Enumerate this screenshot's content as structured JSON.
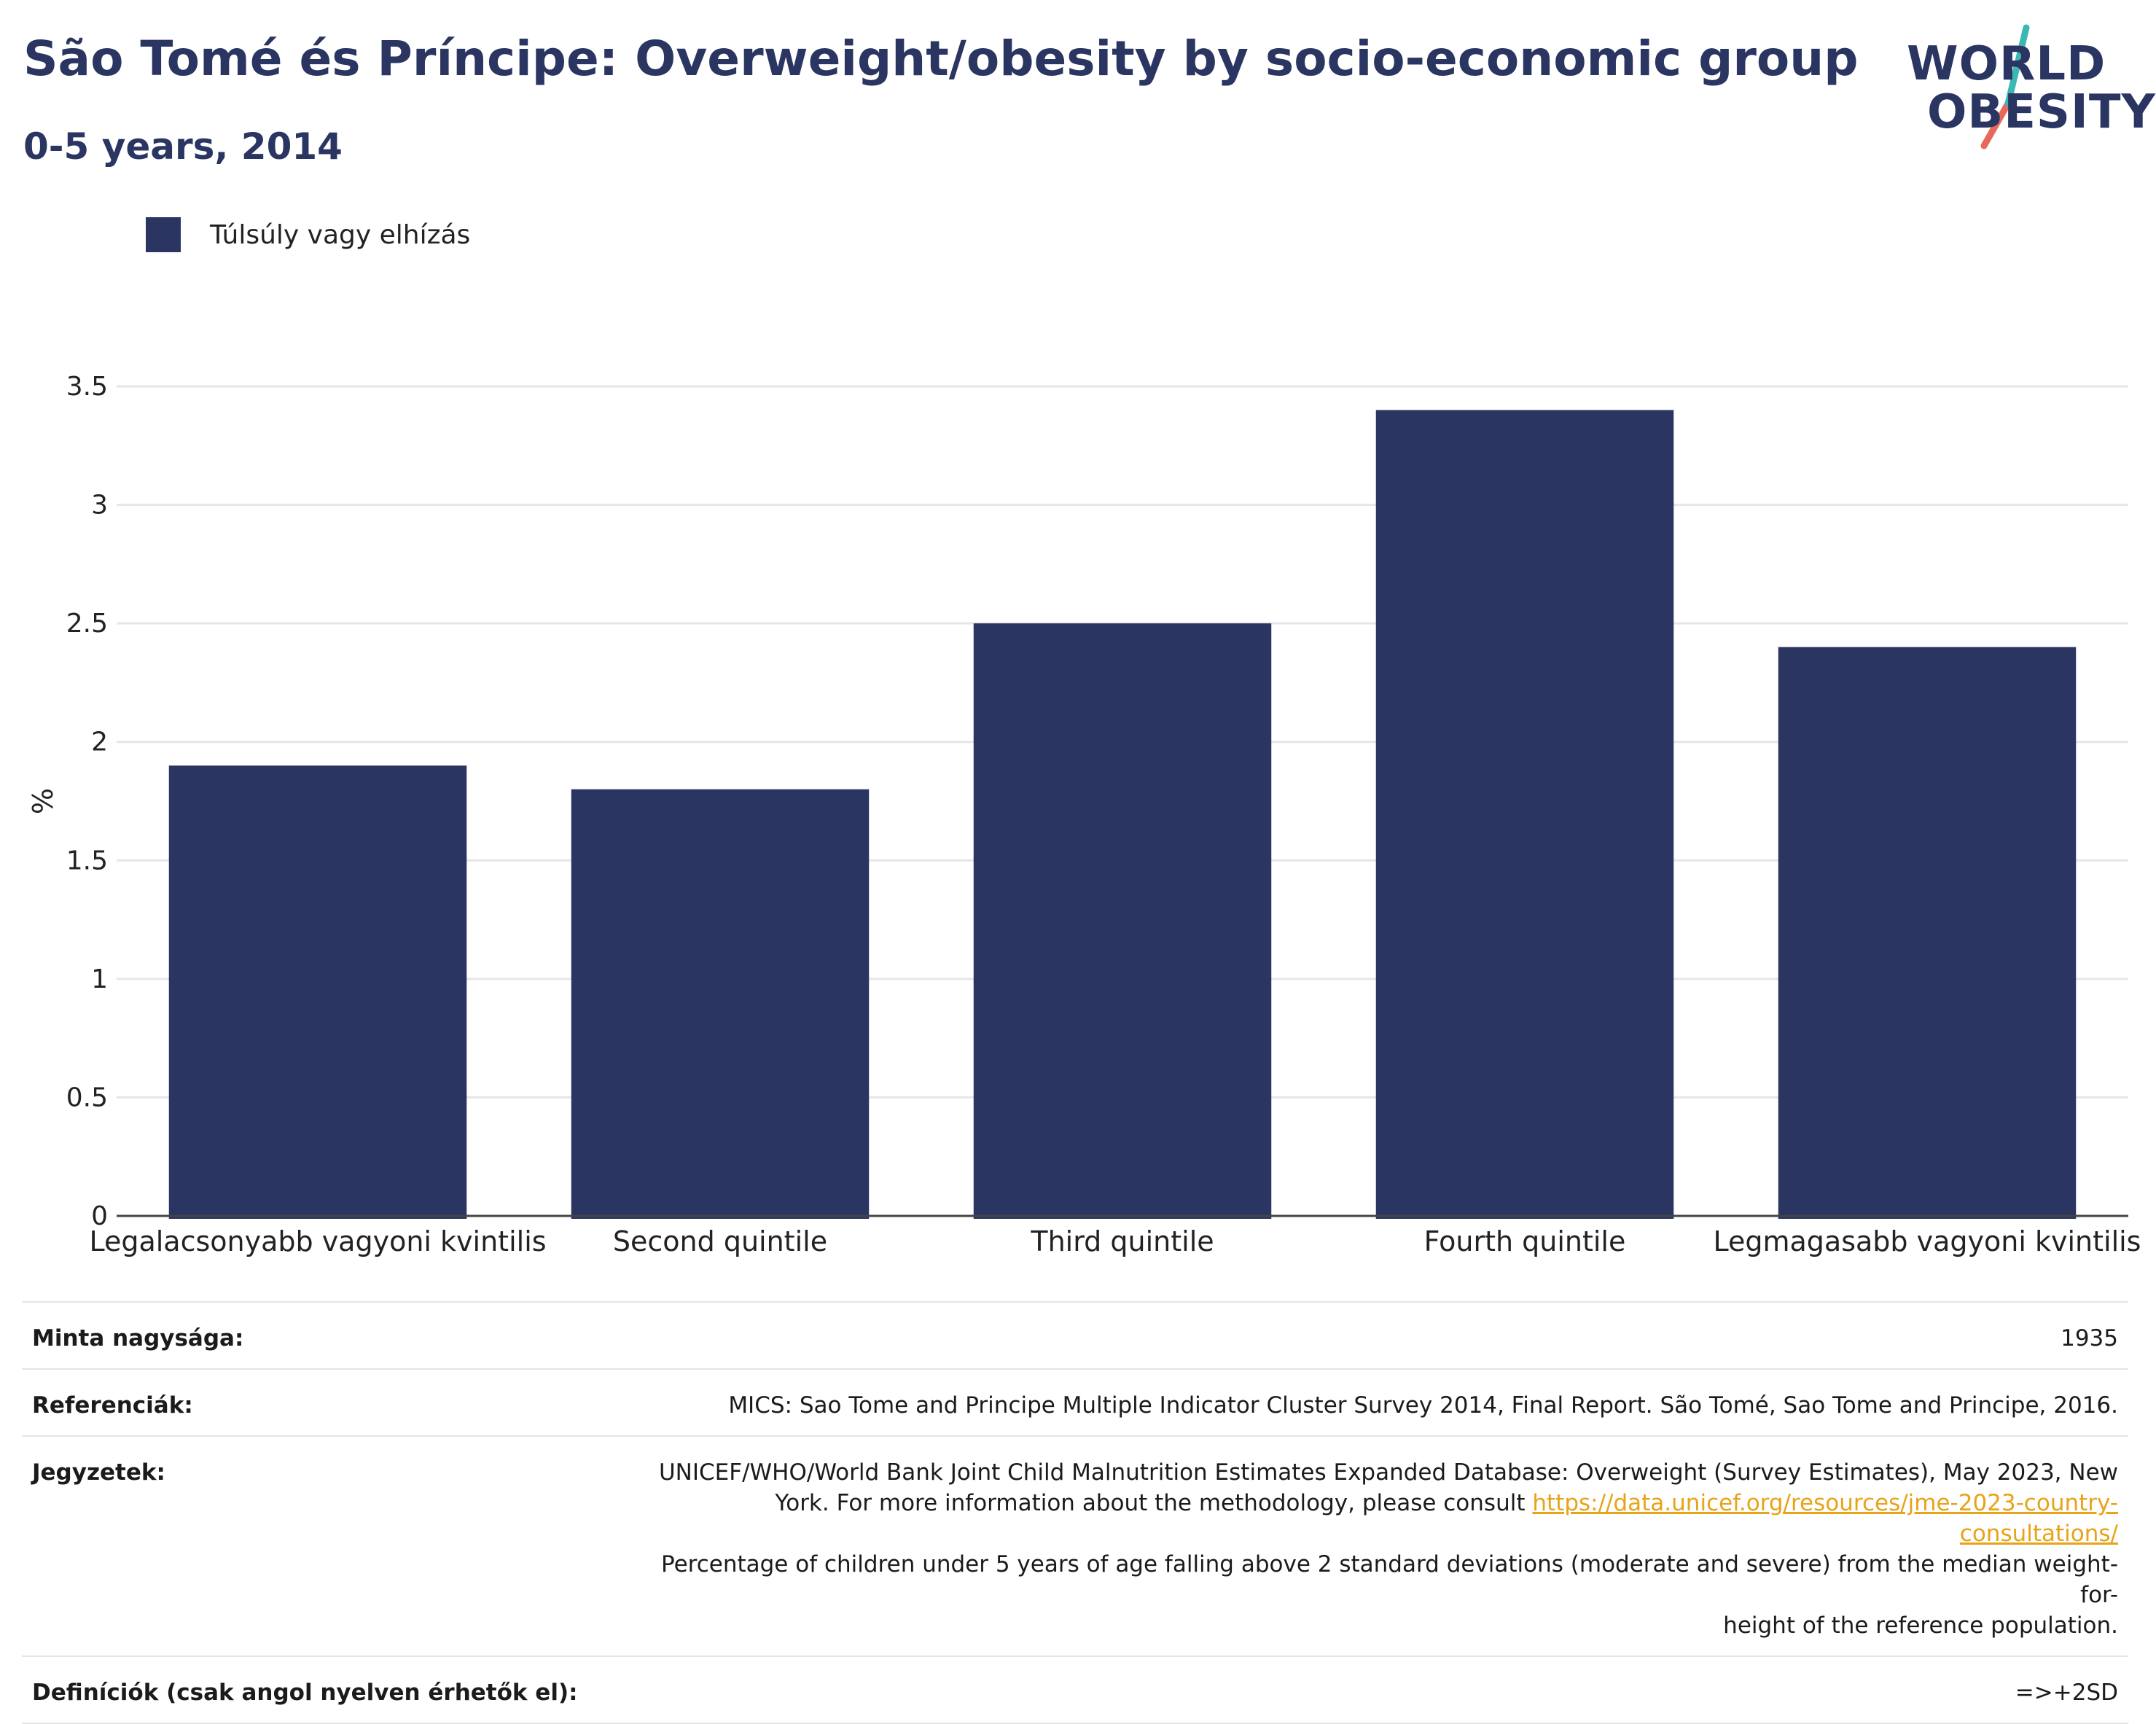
{
  "header": {
    "title": "São Tomé és Príncipe: Overweight/obesity by socio-economic group",
    "subtitle": "0-5 years, 2014"
  },
  "logo": {
    "line1": "WORLD",
    "line2": "OBESITY",
    "colors": {
      "text": "#2a3561",
      "slash_top": "#3cb8b2",
      "slash_bottom": "#e8685a"
    }
  },
  "legend": {
    "label": "Túlsúly vagy elhízás",
    "color": "#2a3561"
  },
  "chart_data": {
    "type": "bar",
    "categories": [
      "Legalacsonyabb vagyoni kvintilis",
      "Second quintile",
      "Third quintile",
      "Fourth quintile",
      "Legmagasabb vagyoni kvintilis"
    ],
    "series": [
      {
        "name": "Túlsúly vagy elhízás",
        "values": [
          1.9,
          1.8,
          2.5,
          3.4,
          2.4
        ],
        "color": "#2a3561"
      }
    ],
    "ylabel": "%",
    "ylim": [
      0,
      3.5
    ],
    "yticks": [
      0,
      0.5,
      1,
      1.5,
      2,
      2.5,
      3,
      3.5
    ],
    "ytick_labels": [
      "0",
      "0.5",
      "1",
      "1.5",
      "2",
      "2.5",
      "3",
      "3.5"
    ],
    "grid": true,
    "legend_position": "top-left"
  },
  "info": {
    "sample_size_label": "Minta nagysága:",
    "sample_size_value": "1935",
    "references_label": "Referenciák:",
    "references_value": "MICS: Sao Tome and Principe Multiple Indicator Cluster Survey 2014, Final Report. São Tomé, Sao Tome and Principe, 2016.",
    "notes_label": "Jegyzetek:",
    "notes_line1": "UNICEF/WHO/World Bank Joint Child Malnutrition Estimates Expanded Database: Overweight (Survey Estimates), May 2023, New",
    "notes_line2_prefix": "York. For more information about the methodology, please consult",
    "notes_link": "https://data.unicef.org/resources/jme-2023-country-consultations/",
    "notes_line3": "Percentage of children under 5 years of age falling above 2 standard deviations (moderate and severe) from the median weight-for-",
    "notes_line4": "height of the reference population.",
    "definitions_label": "Definíciók (csak angol nyelven érhetők el):",
    "definitions_value": "=>+2SD"
  }
}
